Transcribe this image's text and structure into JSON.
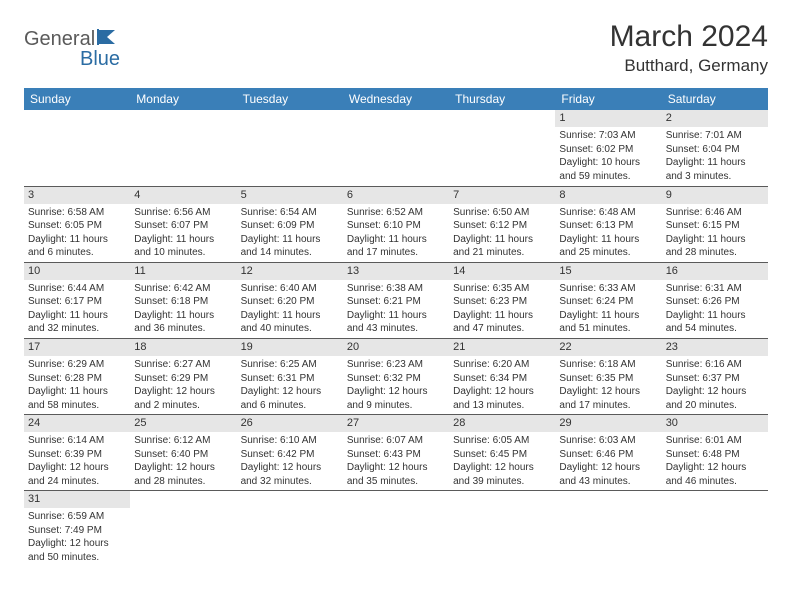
{
  "logo": {
    "text1": "General",
    "text2": "Blue"
  },
  "title": "March 2024",
  "location": "Butthard, Germany",
  "colors": {
    "header_bg": "#3a7fb8",
    "header_fg": "#ffffff",
    "daynum_bg": "#e6e6e6",
    "border": "#5a5a5a",
    "logo_gray": "#5a5a5a",
    "logo_blue": "#2b6ca3"
  },
  "weekdays": [
    "Sunday",
    "Monday",
    "Tuesday",
    "Wednesday",
    "Thursday",
    "Friday",
    "Saturday"
  ],
  "weeks": [
    [
      {
        "day": "",
        "sunrise": "",
        "sunset": "",
        "daylight": ""
      },
      {
        "day": "",
        "sunrise": "",
        "sunset": "",
        "daylight": ""
      },
      {
        "day": "",
        "sunrise": "",
        "sunset": "",
        "daylight": ""
      },
      {
        "day": "",
        "sunrise": "",
        "sunset": "",
        "daylight": ""
      },
      {
        "day": "",
        "sunrise": "",
        "sunset": "",
        "daylight": ""
      },
      {
        "day": "1",
        "sunrise": "Sunrise: 7:03 AM",
        "sunset": "Sunset: 6:02 PM",
        "daylight": "Daylight: 10 hours and 59 minutes."
      },
      {
        "day": "2",
        "sunrise": "Sunrise: 7:01 AM",
        "sunset": "Sunset: 6:04 PM",
        "daylight": "Daylight: 11 hours and 3 minutes."
      }
    ],
    [
      {
        "day": "3",
        "sunrise": "Sunrise: 6:58 AM",
        "sunset": "Sunset: 6:05 PM",
        "daylight": "Daylight: 11 hours and 6 minutes."
      },
      {
        "day": "4",
        "sunrise": "Sunrise: 6:56 AM",
        "sunset": "Sunset: 6:07 PM",
        "daylight": "Daylight: 11 hours and 10 minutes."
      },
      {
        "day": "5",
        "sunrise": "Sunrise: 6:54 AM",
        "sunset": "Sunset: 6:09 PM",
        "daylight": "Daylight: 11 hours and 14 minutes."
      },
      {
        "day": "6",
        "sunrise": "Sunrise: 6:52 AM",
        "sunset": "Sunset: 6:10 PM",
        "daylight": "Daylight: 11 hours and 17 minutes."
      },
      {
        "day": "7",
        "sunrise": "Sunrise: 6:50 AM",
        "sunset": "Sunset: 6:12 PM",
        "daylight": "Daylight: 11 hours and 21 minutes."
      },
      {
        "day": "8",
        "sunrise": "Sunrise: 6:48 AM",
        "sunset": "Sunset: 6:13 PM",
        "daylight": "Daylight: 11 hours and 25 minutes."
      },
      {
        "day": "9",
        "sunrise": "Sunrise: 6:46 AM",
        "sunset": "Sunset: 6:15 PM",
        "daylight": "Daylight: 11 hours and 28 minutes."
      }
    ],
    [
      {
        "day": "10",
        "sunrise": "Sunrise: 6:44 AM",
        "sunset": "Sunset: 6:17 PM",
        "daylight": "Daylight: 11 hours and 32 minutes."
      },
      {
        "day": "11",
        "sunrise": "Sunrise: 6:42 AM",
        "sunset": "Sunset: 6:18 PM",
        "daylight": "Daylight: 11 hours and 36 minutes."
      },
      {
        "day": "12",
        "sunrise": "Sunrise: 6:40 AM",
        "sunset": "Sunset: 6:20 PM",
        "daylight": "Daylight: 11 hours and 40 minutes."
      },
      {
        "day": "13",
        "sunrise": "Sunrise: 6:38 AM",
        "sunset": "Sunset: 6:21 PM",
        "daylight": "Daylight: 11 hours and 43 minutes."
      },
      {
        "day": "14",
        "sunrise": "Sunrise: 6:35 AM",
        "sunset": "Sunset: 6:23 PM",
        "daylight": "Daylight: 11 hours and 47 minutes."
      },
      {
        "day": "15",
        "sunrise": "Sunrise: 6:33 AM",
        "sunset": "Sunset: 6:24 PM",
        "daylight": "Daylight: 11 hours and 51 minutes."
      },
      {
        "day": "16",
        "sunrise": "Sunrise: 6:31 AM",
        "sunset": "Sunset: 6:26 PM",
        "daylight": "Daylight: 11 hours and 54 minutes."
      }
    ],
    [
      {
        "day": "17",
        "sunrise": "Sunrise: 6:29 AM",
        "sunset": "Sunset: 6:28 PM",
        "daylight": "Daylight: 11 hours and 58 minutes."
      },
      {
        "day": "18",
        "sunrise": "Sunrise: 6:27 AM",
        "sunset": "Sunset: 6:29 PM",
        "daylight": "Daylight: 12 hours and 2 minutes."
      },
      {
        "day": "19",
        "sunrise": "Sunrise: 6:25 AM",
        "sunset": "Sunset: 6:31 PM",
        "daylight": "Daylight: 12 hours and 6 minutes."
      },
      {
        "day": "20",
        "sunrise": "Sunrise: 6:23 AM",
        "sunset": "Sunset: 6:32 PM",
        "daylight": "Daylight: 12 hours and 9 minutes."
      },
      {
        "day": "21",
        "sunrise": "Sunrise: 6:20 AM",
        "sunset": "Sunset: 6:34 PM",
        "daylight": "Daylight: 12 hours and 13 minutes."
      },
      {
        "day": "22",
        "sunrise": "Sunrise: 6:18 AM",
        "sunset": "Sunset: 6:35 PM",
        "daylight": "Daylight: 12 hours and 17 minutes."
      },
      {
        "day": "23",
        "sunrise": "Sunrise: 6:16 AM",
        "sunset": "Sunset: 6:37 PM",
        "daylight": "Daylight: 12 hours and 20 minutes."
      }
    ],
    [
      {
        "day": "24",
        "sunrise": "Sunrise: 6:14 AM",
        "sunset": "Sunset: 6:39 PM",
        "daylight": "Daylight: 12 hours and 24 minutes."
      },
      {
        "day": "25",
        "sunrise": "Sunrise: 6:12 AM",
        "sunset": "Sunset: 6:40 PM",
        "daylight": "Daylight: 12 hours and 28 minutes."
      },
      {
        "day": "26",
        "sunrise": "Sunrise: 6:10 AM",
        "sunset": "Sunset: 6:42 PM",
        "daylight": "Daylight: 12 hours and 32 minutes."
      },
      {
        "day": "27",
        "sunrise": "Sunrise: 6:07 AM",
        "sunset": "Sunset: 6:43 PM",
        "daylight": "Daylight: 12 hours and 35 minutes."
      },
      {
        "day": "28",
        "sunrise": "Sunrise: 6:05 AM",
        "sunset": "Sunset: 6:45 PM",
        "daylight": "Daylight: 12 hours and 39 minutes."
      },
      {
        "day": "29",
        "sunrise": "Sunrise: 6:03 AM",
        "sunset": "Sunset: 6:46 PM",
        "daylight": "Daylight: 12 hours and 43 minutes."
      },
      {
        "day": "30",
        "sunrise": "Sunrise: 6:01 AM",
        "sunset": "Sunset: 6:48 PM",
        "daylight": "Daylight: 12 hours and 46 minutes."
      }
    ],
    [
      {
        "day": "31",
        "sunrise": "Sunrise: 6:59 AM",
        "sunset": "Sunset: 7:49 PM",
        "daylight": "Daylight: 12 hours and 50 minutes."
      },
      {
        "day": "",
        "sunrise": "",
        "sunset": "",
        "daylight": ""
      },
      {
        "day": "",
        "sunrise": "",
        "sunset": "",
        "daylight": ""
      },
      {
        "day": "",
        "sunrise": "",
        "sunset": "",
        "daylight": ""
      },
      {
        "day": "",
        "sunrise": "",
        "sunset": "",
        "daylight": ""
      },
      {
        "day": "",
        "sunrise": "",
        "sunset": "",
        "daylight": ""
      },
      {
        "day": "",
        "sunrise": "",
        "sunset": "",
        "daylight": ""
      }
    ]
  ]
}
